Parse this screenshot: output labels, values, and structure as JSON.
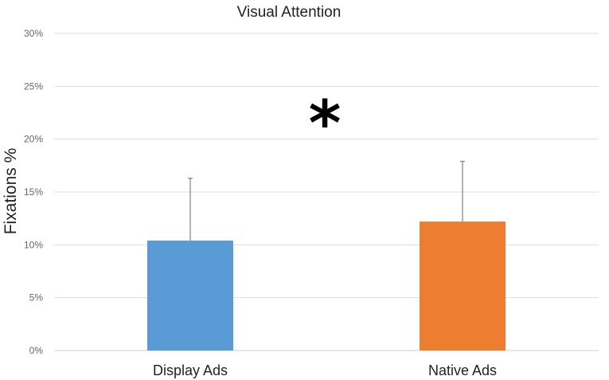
{
  "chart_data": {
    "type": "bar",
    "title": "Visual Attention",
    "xlabel": "",
    "ylabel": "Fixations %",
    "categories": [
      "Display Ads",
      "Native Ads"
    ],
    "values": [
      10.4,
      12.2
    ],
    "error_upper": [
      16.3,
      17.9
    ],
    "colors": [
      "#5b9bd5",
      "#ed7d31"
    ],
    "ylim": [
      0,
      30
    ],
    "yticks": [
      0,
      5,
      10,
      15,
      20,
      25,
      30
    ],
    "ytick_labels": [
      "0%",
      "5%",
      "10%",
      "15%",
      "20%",
      "25%",
      "30%"
    ],
    "grid": true,
    "annotation": "*"
  }
}
